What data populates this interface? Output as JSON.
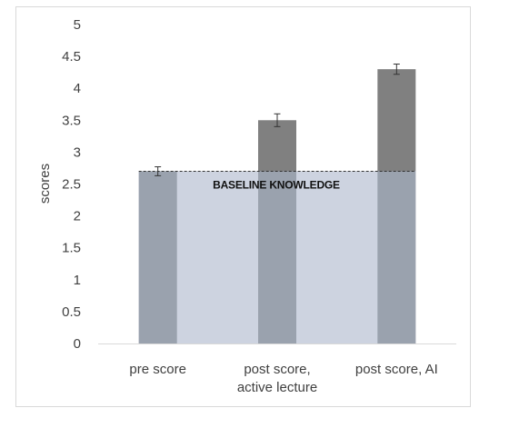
{
  "chart_data": {
    "type": "bar",
    "title": "",
    "xlabel": "",
    "ylabel": "scores",
    "categories": [
      {
        "lines": [
          "pre score"
        ]
      },
      {
        "lines": [
          "post score,",
          "active lecture"
        ]
      },
      {
        "lines": [
          "post score, AI"
        ]
      }
    ],
    "series": [
      {
        "values": [
          2.7,
          3.5,
          4.3
        ],
        "errors": [
          0.07,
          0.1,
          0.08
        ]
      }
    ],
    "baseline": {
      "value": 2.7,
      "label": "BASELINE KNOWLEDGE",
      "line_style": "dashed"
    },
    "ylim": [
      0,
      5
    ],
    "yticks": [
      "0",
      "0.5",
      "1",
      "1.5",
      "2",
      "2.5",
      "3",
      "3.5",
      "4",
      "4.5",
      "5"
    ],
    "grid": false,
    "legend": "none",
    "colors": {
      "bar_above_baseline": "#808080",
      "bar_below_baseline": "#9aa2ae",
      "baseline_band": "#cdd3e0",
      "baseline_line": "#333333",
      "error_bar": "#333333",
      "axis": "#d9d9d9",
      "frame": "#d9d9d9"
    }
  }
}
